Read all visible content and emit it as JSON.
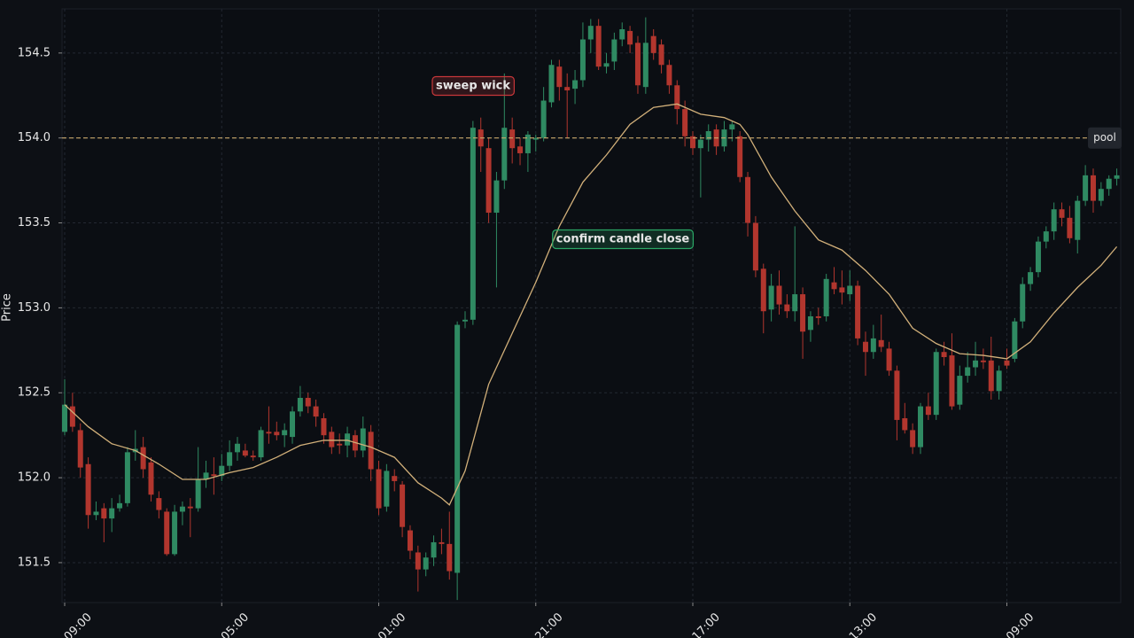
{
  "chart_data": {
    "type": "candlestick",
    "y_label": "Price",
    "up_color": "#2f8a62",
    "down_color": "#b2362e",
    "xlim": [
      -0.34,
      134.5
    ],
    "ylim": [
      151.265,
      154.76
    ],
    "xticks": [
      {
        "value": 0,
        "label": "09:00"
      },
      {
        "value": 20,
        "label": "05:00"
      },
      {
        "value": 40,
        "label": "01:00"
      },
      {
        "value": 60,
        "label": "21:00"
      },
      {
        "value": 80,
        "label": "17:00"
      },
      {
        "value": 100,
        "label": "13:00"
      },
      {
        "value": 120,
        "label": "09:00"
      }
    ],
    "yticks": [
      151.5,
      {
        "value": 152,
        "label": "152.0"
      },
      152.5,
      {
        "value": 153,
        "label": "153.0"
      },
      153.5,
      {
        "value": 154,
        "label": "154.0"
      },
      154.5
    ],
    "grid": true,
    "x": [
      0,
      1,
      2,
      3,
      4,
      5,
      6,
      7,
      8,
      9,
      10,
      11,
      12,
      13,
      14,
      15,
      16,
      17,
      18,
      19,
      20,
      21,
      22,
      23,
      24,
      25,
      26,
      27,
      28,
      29,
      30,
      31,
      32,
      33,
      34,
      35,
      36,
      37,
      38,
      39,
      40,
      41,
      42,
      43,
      44,
      45,
      46,
      47,
      48,
      49,
      50,
      51,
      52,
      53,
      54,
      55,
      56,
      57,
      58,
      59,
      60,
      61,
      62,
      63,
      64,
      65,
      66,
      67,
      68,
      69,
      70,
      71,
      72,
      73,
      74,
      75,
      76,
      77,
      78,
      79,
      80,
      81,
      82,
      83,
      84,
      85,
      86,
      87,
      88,
      89,
      90,
      91,
      92,
      93,
      94,
      95,
      96,
      97,
      98,
      99,
      100,
      101,
      102,
      103,
      104,
      105,
      106,
      107,
      108,
      109,
      110,
      111,
      112,
      113,
      114,
      115,
      116,
      117,
      118,
      119,
      120,
      121,
      122,
      123,
      124,
      125,
      126,
      127,
      128,
      129,
      130,
      131,
      132,
      133,
      134
    ],
    "ohlc": [
      [
        152.27,
        152.58,
        152.25,
        152.43
      ],
      [
        152.42,
        152.5,
        152.27,
        152.3
      ],
      [
        152.28,
        152.32,
        152.0,
        152.06
      ],
      [
        152.08,
        152.12,
        151.7,
        151.78
      ],
      [
        151.78,
        151.86,
        151.75,
        151.8
      ],
      [
        151.82,
        151.85,
        151.62,
        151.76
      ],
      [
        151.76,
        151.88,
        151.68,
        151.82
      ],
      [
        151.82,
        151.9,
        151.8,
        151.85
      ],
      [
        151.85,
        152.18,
        151.83,
        152.15
      ],
      [
        152.15,
        152.28,
        152.1,
        152.17
      ],
      [
        152.18,
        152.24,
        152.0,
        152.05
      ],
      [
        152.09,
        152.12,
        151.86,
        151.9
      ],
      [
        151.88,
        151.92,
        151.76,
        151.81
      ],
      [
        151.8,
        151.82,
        151.54,
        151.55
      ],
      [
        151.55,
        151.84,
        151.54,
        151.8
      ],
      [
        151.8,
        151.86,
        151.72,
        151.83
      ],
      [
        151.83,
        151.88,
        151.65,
        151.82
      ],
      [
        151.82,
        152.18,
        151.8,
        151.99
      ],
      [
        151.99,
        152.1,
        151.94,
        152.03
      ],
      [
        152.02,
        152.12,
        151.9,
        152.01
      ],
      [
        152.01,
        152.14,
        151.98,
        152.07
      ],
      [
        152.07,
        152.22,
        152.04,
        152.15
      ],
      [
        152.15,
        152.24,
        152.1,
        152.2
      ],
      [
        152.16,
        152.2,
        152.12,
        152.13
      ],
      [
        152.13,
        152.16,
        152.1,
        152.12
      ],
      [
        152.12,
        152.3,
        152.1,
        152.28
      ],
      [
        152.27,
        152.42,
        152.2,
        152.26
      ],
      [
        152.27,
        152.33,
        152.22,
        152.25
      ],
      [
        152.25,
        152.32,
        152.18,
        152.28
      ],
      [
        152.24,
        152.42,
        152.2,
        152.39
      ],
      [
        152.39,
        152.54,
        152.36,
        152.47
      ],
      [
        152.47,
        152.5,
        152.38,
        152.42
      ],
      [
        152.42,
        152.46,
        152.3,
        152.36
      ],
      [
        152.35,
        152.38,
        152.2,
        152.25
      ],
      [
        152.27,
        152.3,
        152.14,
        152.18
      ],
      [
        152.2,
        152.26,
        152.14,
        152.19
      ],
      [
        152.19,
        152.3,
        152.12,
        152.26
      ],
      [
        152.25,
        152.28,
        152.12,
        152.16
      ],
      [
        152.16,
        152.36,
        152.12,
        152.29
      ],
      [
        152.27,
        152.31,
        151.98,
        152.05
      ],
      [
        152.05,
        152.1,
        151.78,
        151.82
      ],
      [
        151.83,
        152.08,
        151.8,
        152.04
      ],
      [
        152.01,
        152.05,
        151.92,
        151.98
      ],
      [
        151.96,
        151.98,
        151.65,
        151.71
      ],
      [
        151.69,
        151.72,
        151.52,
        151.57
      ],
      [
        151.56,
        151.6,
        151.33,
        151.46
      ],
      [
        151.46,
        151.56,
        151.42,
        151.53
      ],
      [
        151.53,
        151.66,
        151.48,
        151.62
      ],
      [
        151.62,
        151.7,
        151.55,
        151.61
      ],
      [
        151.61,
        151.8,
        151.4,
        151.45
      ],
      [
        151.44,
        152.92,
        151.28,
        152.9
      ],
      [
        152.92,
        152.98,
        152.88,
        152.93
      ],
      [
        152.93,
        154.1,
        152.9,
        154.06
      ],
      [
        154.05,
        154.12,
        153.8,
        153.95
      ],
      [
        153.94,
        154.0,
        153.5,
        153.56
      ],
      [
        153.56,
        153.8,
        153.12,
        153.75
      ],
      [
        153.75,
        154.38,
        153.7,
        154.06
      ],
      [
        154.05,
        154.12,
        153.85,
        153.94
      ],
      [
        153.95,
        154.0,
        153.84,
        153.91
      ],
      [
        153.91,
        154.04,
        153.8,
        154.02
      ],
      [
        153.99,
        154.02,
        153.92,
        154.0
      ],
      [
        154.0,
        154.3,
        153.98,
        154.22
      ],
      [
        154.21,
        154.46,
        154.18,
        154.43
      ],
      [
        154.42,
        154.46,
        154.22,
        154.3
      ],
      [
        154.3,
        154.38,
        154.0,
        154.28
      ],
      [
        154.29,
        154.4,
        154.2,
        154.34
      ],
      [
        154.34,
        154.68,
        154.3,
        154.58
      ],
      [
        154.58,
        154.7,
        154.5,
        154.66
      ],
      [
        154.66,
        154.7,
        154.4,
        154.42
      ],
      [
        154.42,
        154.5,
        154.38,
        154.44
      ],
      [
        154.45,
        154.62,
        154.4,
        154.58
      ],
      [
        154.58,
        154.68,
        154.54,
        154.64
      ],
      [
        154.63,
        154.66,
        154.5,
        154.55
      ],
      [
        154.56,
        154.6,
        154.26,
        154.31
      ],
      [
        154.3,
        154.71,
        154.26,
        154.56
      ],
      [
        154.6,
        154.64,
        154.46,
        154.5
      ],
      [
        154.55,
        154.58,
        154.38,
        154.43
      ],
      [
        154.43,
        154.46,
        154.26,
        154.31
      ],
      [
        154.31,
        154.34,
        154.08,
        154.17
      ],
      [
        154.17,
        154.22,
        153.95,
        154.01
      ],
      [
        154.01,
        154.04,
        153.9,
        153.94
      ],
      [
        153.94,
        154.02,
        153.65,
        153.99
      ],
      [
        153.99,
        154.08,
        153.92,
        154.04
      ],
      [
        154.05,
        154.08,
        153.9,
        153.95
      ],
      [
        153.95,
        154.1,
        153.92,
        154.05
      ],
      [
        154.05,
        154.1,
        153.98,
        154.08
      ],
      [
        154.01,
        154.04,
        153.74,
        153.77
      ],
      [
        153.77,
        153.8,
        153.42,
        153.5
      ],
      [
        153.5,
        153.54,
        153.18,
        153.22
      ],
      [
        153.23,
        153.26,
        152.85,
        152.98
      ],
      [
        152.99,
        153.2,
        152.92,
        153.13
      ],
      [
        153.13,
        153.22,
        152.96,
        153.02
      ],
      [
        153.02,
        153.08,
        152.94,
        152.98
      ],
      [
        152.98,
        153.48,
        152.92,
        153.08
      ],
      [
        153.08,
        153.12,
        152.7,
        152.86
      ],
      [
        152.87,
        152.98,
        152.8,
        152.95
      ],
      [
        152.95,
        153.0,
        152.9,
        152.94
      ],
      [
        152.95,
        153.2,
        152.92,
        153.17
      ],
      [
        153.15,
        153.24,
        153.08,
        153.11
      ],
      [
        153.12,
        153.22,
        153.02,
        153.09
      ],
      [
        153.08,
        153.22,
        153.04,
        153.13
      ],
      [
        153.13,
        153.16,
        152.78,
        152.82
      ],
      [
        152.8,
        152.86,
        152.6,
        152.74
      ],
      [
        152.74,
        152.9,
        152.7,
        152.82
      ],
      [
        152.81,
        152.96,
        152.74,
        152.77
      ],
      [
        152.76,
        152.8,
        152.6,
        152.63
      ],
      [
        152.63,
        152.66,
        152.22,
        152.34
      ],
      [
        152.35,
        152.44,
        152.26,
        152.28
      ],
      [
        152.28,
        152.32,
        152.14,
        152.18
      ],
      [
        152.18,
        152.44,
        152.14,
        152.42
      ],
      [
        152.42,
        152.5,
        152.34,
        152.37
      ],
      [
        152.37,
        152.76,
        152.34,
        152.74
      ],
      [
        152.74,
        152.8,
        152.66,
        152.71
      ],
      [
        152.72,
        152.85,
        152.4,
        152.42
      ],
      [
        152.43,
        152.66,
        152.4,
        152.6
      ],
      [
        152.6,
        152.74,
        152.56,
        152.65
      ],
      [
        152.65,
        152.8,
        152.6,
        152.69
      ],
      [
        152.69,
        152.76,
        152.64,
        152.68
      ],
      [
        152.69,
        152.83,
        152.46,
        152.51
      ],
      [
        152.51,
        152.66,
        152.46,
        152.63
      ],
      [
        152.69,
        152.76,
        152.64,
        152.66
      ],
      [
        152.7,
        152.94,
        152.68,
        152.92
      ],
      [
        152.92,
        153.18,
        152.88,
        153.14
      ],
      [
        153.14,
        153.24,
        153.1,
        153.21
      ],
      [
        153.21,
        153.42,
        153.18,
        153.39
      ],
      [
        153.39,
        153.48,
        153.35,
        153.45
      ],
      [
        153.45,
        153.62,
        153.4,
        153.58
      ],
      [
        153.58,
        153.62,
        153.48,
        153.53
      ],
      [
        153.53,
        153.6,
        153.38,
        153.41
      ],
      [
        153.4,
        153.66,
        153.32,
        153.63
      ],
      [
        153.63,
        153.84,
        153.6,
        153.78
      ],
      [
        153.78,
        153.82,
        153.56,
        153.63
      ],
      [
        153.63,
        153.74,
        153.6,
        153.7
      ],
      [
        153.7,
        153.78,
        153.66,
        153.76
      ],
      [
        153.76,
        153.82,
        153.72,
        153.78
      ]
    ],
    "moving_average": {
      "color": "#d2b07a",
      "x": [
        0,
        3,
        6,
        9,
        12,
        15,
        18,
        21,
        24,
        27,
        30,
        33,
        36,
        39,
        42,
        45,
        48,
        49,
        51,
        54,
        57,
        60,
        63,
        66,
        69,
        72,
        75,
        78,
        81,
        84,
        86,
        87,
        90,
        93,
        96,
        99,
        102,
        105,
        108,
        111,
        114,
        117,
        120,
        123,
        126,
        129,
        132,
        134
      ],
      "values": [
        152.43,
        152.3,
        152.2,
        152.16,
        152.08,
        151.99,
        151.99,
        152.03,
        152.06,
        152.12,
        152.19,
        152.22,
        152.22,
        152.18,
        152.12,
        151.97,
        151.88,
        151.84,
        152.04,
        152.55,
        152.85,
        153.15,
        153.48,
        153.74,
        153.9,
        154.08,
        154.18,
        154.2,
        154.14,
        154.12,
        154.08,
        154.02,
        153.77,
        153.57,
        153.4,
        153.34,
        153.22,
        153.08,
        152.88,
        152.79,
        152.73,
        152.72,
        152.7,
        152.8,
        152.97,
        153.12,
        153.25,
        153.36
      ]
    },
    "level": {
      "value": 154,
      "label": "pool",
      "color": "#c9a86c"
    },
    "annotations": [
      {
        "text": "sweep wick",
        "color": "#c8373a"
      },
      {
        "text": "confirm candle close",
        "color": "#2aa665"
      }
    ]
  }
}
